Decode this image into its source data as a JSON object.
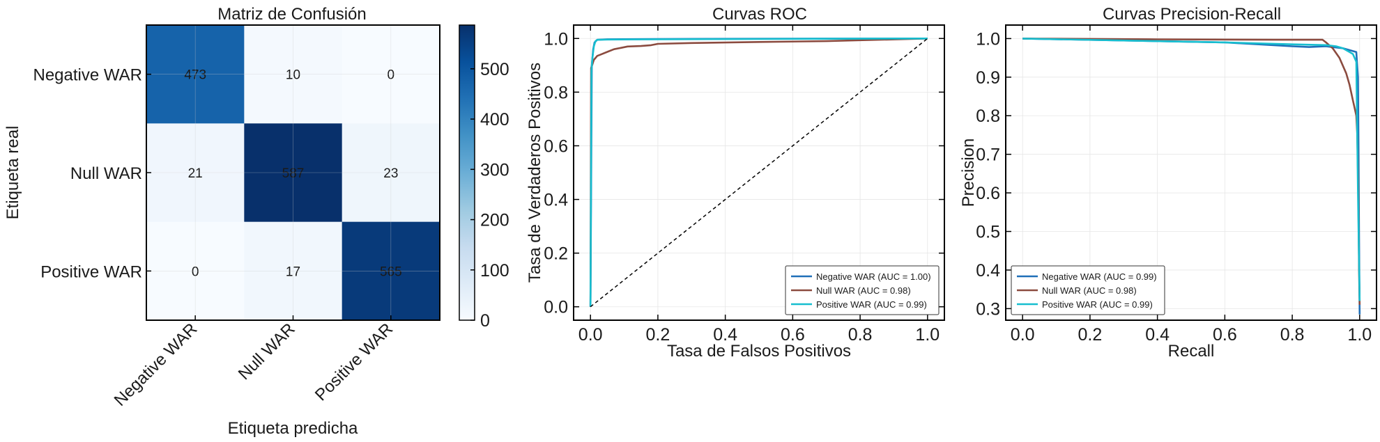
{
  "colors": {
    "negative": "#1f6fb8",
    "null": "#8b4b3f",
    "positive": "#17becf",
    "diagonal": "#000000",
    "cmap_low": "#f7fbff",
    "cmap_high": "#08306b"
  },
  "chart_data": [
    {
      "type": "heatmap",
      "title": "Matriz de Confusión",
      "xlabel": "Etiqueta predicha",
      "ylabel": "Etiqueta real",
      "row_labels": [
        "Negative WAR",
        "Null WAR",
        "Positive WAR"
      ],
      "col_labels": [
        "Negative WAR",
        "Null WAR",
        "Positive WAR"
      ],
      "matrix": [
        [
          473,
          10,
          0
        ],
        [
          21,
          587,
          23
        ],
        [
          0,
          17,
          565
        ]
      ],
      "colorbar_ticks": [
        0,
        100,
        200,
        300,
        400,
        500
      ],
      "colorbar_range": [
        0,
        587
      ]
    },
    {
      "type": "line",
      "title": "Curvas ROC",
      "xlabel": "Tasa de Falsos Positivos",
      "ylabel": "Tasa de Verdaderos Positivos",
      "xlim": [
        -0.05,
        1.05
      ],
      "ylim": [
        -0.05,
        1.05
      ],
      "xticks": [
        0.0,
        0.2,
        0.4,
        0.6,
        0.8,
        1.0
      ],
      "yticks": [
        0.0,
        0.2,
        0.4,
        0.6,
        0.8,
        1.0
      ],
      "tick_labels": [
        "0.0",
        "0.2",
        "0.4",
        "0.6",
        "0.8",
        "1.0"
      ],
      "legend_position": "lower-right",
      "grid": true,
      "series": [
        {
          "name": "Negative WAR (AUC = 1.00)",
          "color_key": "negative",
          "x": [
            0,
            0.004,
            0.008,
            0.012,
            0.02,
            0.05,
            0.2,
            0.5,
            1.0
          ],
          "y": [
            0,
            0.9,
            0.96,
            0.985,
            0.995,
            0.997,
            0.998,
            0.999,
            1.0
          ]
        },
        {
          "name": "Null WAR (AUC = 0.98)",
          "color_key": "null",
          "x": [
            0,
            0.002,
            0.005,
            0.01,
            0.02,
            0.03,
            0.05,
            0.07,
            0.09,
            0.11,
            0.15,
            0.18,
            0.2,
            0.3,
            0.5,
            0.7,
            1.0
          ],
          "y": [
            0,
            0.89,
            0.9,
            0.92,
            0.935,
            0.94,
            0.95,
            0.96,
            0.965,
            0.97,
            0.972,
            0.975,
            0.98,
            0.983,
            0.987,
            0.99,
            1.0
          ]
        },
        {
          "name": "Positive WAR (AUC = 0.99)",
          "color_key": "positive",
          "x": [
            0,
            0.003,
            0.006,
            0.01,
            0.015,
            0.02,
            0.05,
            0.2,
            0.5,
            1.0
          ],
          "y": [
            0,
            0.88,
            0.93,
            0.97,
            0.99,
            0.995,
            0.996,
            0.997,
            0.998,
            1.0
          ]
        },
        {
          "name": "",
          "color_key": "diagonal",
          "dashed": true,
          "x": [
            0,
            1
          ],
          "y": [
            0,
            1
          ]
        }
      ]
    },
    {
      "type": "line",
      "title": "Curvas Precision-Recall",
      "xlabel": "Recall",
      "ylabel": "Precision",
      "xlim": [
        -0.05,
        1.05
      ],
      "ylim": [
        0.27,
        1.035
      ],
      "xticks": [
        0.0,
        0.2,
        0.4,
        0.6,
        0.8,
        1.0
      ],
      "yticks": [
        0.3,
        0.4,
        0.5,
        0.6,
        0.7,
        0.8,
        0.9,
        1.0
      ],
      "xtick_labels": [
        "0.0",
        "0.2",
        "0.4",
        "0.6",
        "0.8",
        "1.0"
      ],
      "ytick_labels": [
        "0.3",
        "0.4",
        "0.5",
        "0.6",
        "0.7",
        "0.8",
        "0.9",
        "1.0"
      ],
      "legend_position": "lower-left",
      "grid": true,
      "series": [
        {
          "name": "Negative WAR (AUC = 0.99)",
          "color_key": "negative",
          "x": [
            0,
            0.3,
            0.6,
            0.8,
            0.85,
            0.9,
            0.95,
            0.97,
            0.99,
            0.995,
            0.998,
            1.0
          ],
          "y": [
            1.0,
            0.995,
            0.99,
            0.98,
            0.978,
            0.98,
            0.975,
            0.97,
            0.965,
            0.9,
            0.5,
            0.285
          ]
        },
        {
          "name": "Null WAR (AUC = 0.98)",
          "color_key": "null",
          "x": [
            0,
            0.4,
            0.75,
            0.89,
            0.9,
            0.92,
            0.94,
            0.96,
            0.97,
            0.975,
            0.98,
            0.985,
            0.99,
            0.993,
            0.996,
            0.998,
            1.0
          ],
          "y": [
            1.0,
            0.998,
            0.997,
            0.997,
            0.99,
            0.975,
            0.95,
            0.91,
            0.88,
            0.86,
            0.84,
            0.82,
            0.8,
            0.75,
            0.6,
            0.4,
            0.31
          ]
        },
        {
          "name": "Positive WAR (AUC = 0.99)",
          "color_key": "positive",
          "x": [
            0,
            0.3,
            0.6,
            0.8,
            0.9,
            0.93,
            0.95,
            0.97,
            0.98,
            0.99,
            0.995,
            1.0
          ],
          "y": [
            1.0,
            0.995,
            0.99,
            0.985,
            0.983,
            0.98,
            0.975,
            0.965,
            0.96,
            0.94,
            0.6,
            0.32
          ]
        }
      ]
    }
  ]
}
